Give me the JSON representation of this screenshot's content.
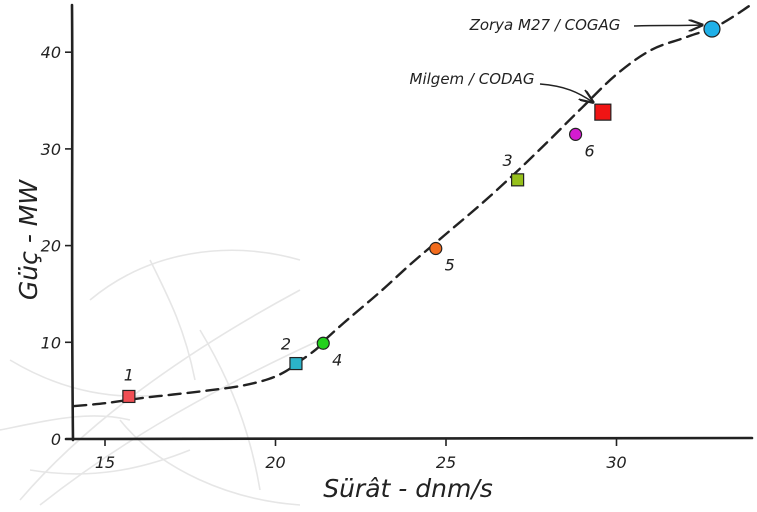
{
  "chart_data": {
    "type": "scatter",
    "title": "",
    "xlabel": "Sürât - dnm/s",
    "ylabel": "Güç - MW",
    "xlim": [
      14,
      34
    ],
    "ylim": [
      0,
      45
    ],
    "x_ticks": [
      "15",
      "20",
      "25",
      "30"
    ],
    "y_ticks": [
      "0",
      "10",
      "20",
      "30",
      "40"
    ],
    "grid": false,
    "legend": "none",
    "trend_curve": {
      "style": "dashed",
      "color": "#222222",
      "x": [
        14.1,
        15,
        16,
        17,
        18,
        19,
        19.8,
        20.3,
        20.7,
        21.2,
        21.5,
        22,
        23,
        24,
        25,
        26,
        27,
        28,
        29,
        30,
        31,
        32,
        33,
        33.9
      ],
      "y": [
        3.4,
        3.7,
        4.2,
        4.6,
        5.0,
        5.5,
        6.2,
        7.0,
        8.0,
        9.3,
        10.4,
        12.0,
        15.0,
        18.2,
        21.2,
        24.2,
        27.4,
        30.8,
        34.3,
        37.7,
        40.2,
        41.5,
        42.8,
        44.8
      ]
    },
    "points": [
      {
        "label": "1",
        "x": 15.7,
        "y": 4.4,
        "marker": "square",
        "color": "#f04e54",
        "label_pos": "above"
      },
      {
        "label": "2",
        "x": 20.6,
        "y": 7.8,
        "marker": "square",
        "color": "#2bb3c9",
        "label_pos": "above-left"
      },
      {
        "label": "4",
        "x": 21.4,
        "y": 9.9,
        "marker": "circle",
        "color": "#22d11d",
        "label_pos": "below-right"
      },
      {
        "label": "5",
        "x": 24.7,
        "y": 19.7,
        "marker": "circle",
        "color": "#f26b1c",
        "label_pos": "below-right"
      },
      {
        "label": "3",
        "x": 27.1,
        "y": 26.8,
        "marker": "square",
        "color": "#96c01b",
        "label_pos": "above-left"
      },
      {
        "label": "6",
        "x": 28.8,
        "y": 31.5,
        "marker": "circle",
        "color": "#d41bd0",
        "label_pos": "below-right"
      },
      {
        "label": "",
        "x": 29.6,
        "y": 33.8,
        "marker": "square-large",
        "color": "#f01414",
        "label_pos": "none"
      },
      {
        "label": "",
        "x": 32.8,
        "y": 42.4,
        "marker": "circle-large",
        "color": "#1fb0e8",
        "label_pos": "none"
      }
    ],
    "annotations": [
      {
        "text": "Milgem / CODAG",
        "target_index": 6
      },
      {
        "text": "Zorya M27 / COGAG",
        "target_index": 7
      }
    ]
  }
}
